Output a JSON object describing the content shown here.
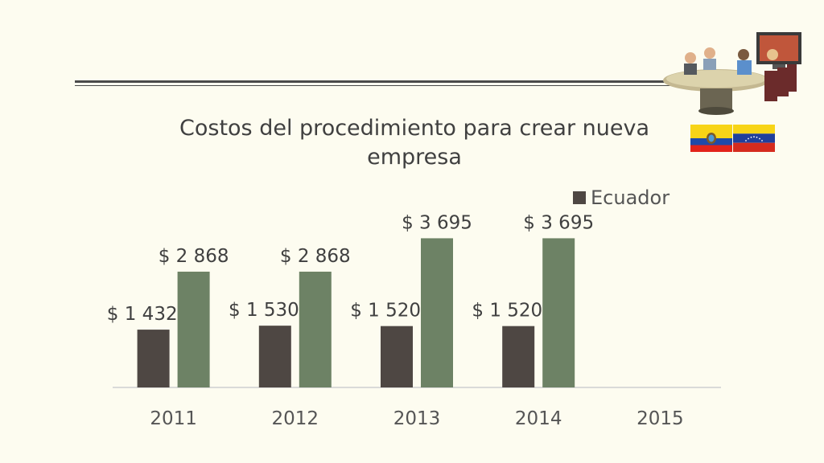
{
  "chart_data": {
    "type": "bar",
    "title": "Costos del procedimiento para crear nueva empresa",
    "categories": [
      "2011",
      "2012",
      "2013",
      "2014",
      "2015"
    ],
    "series": [
      {
        "name": "Ecuador",
        "values": [
          1432,
          1530,
          1520,
          1520,
          null
        ],
        "labels": [
          "$ 1 432",
          "$ 1 530",
          "$ 1 520",
          "$ 1 520",
          ""
        ],
        "color": "#4e4743"
      },
      {
        "name": "",
        "values": [
          2868,
          2868,
          3695,
          3695,
          null
        ],
        "labels": [
          "$ 2 868",
          "$ 2 868",
          "$ 3 695",
          "$ 3 695",
          ""
        ],
        "color": "#6d8265"
      }
    ],
    "xlabel": "",
    "ylabel": "",
    "ylim": [
      0,
      4500
    ],
    "grid": false,
    "legend_position": "top-right"
  },
  "decorations": {
    "clipart": "video-conference-meeting-clipart",
    "flags": [
      "ecuador-flag",
      "venezuela-flag"
    ]
  },
  "colors": {
    "background": "#fdfcf0",
    "axis": "#cfcfcf",
    "text": "#404040"
  }
}
